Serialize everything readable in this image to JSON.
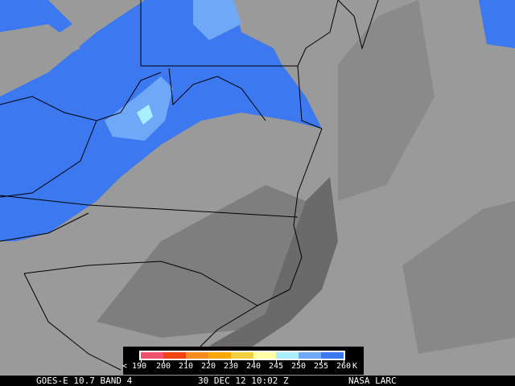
{
  "image": {
    "colors": {
      "background_gray": "#9a9a9a",
      "dark_gray": "#6e6e6e",
      "cloud_blue": "#3c78f0",
      "cloud_light_blue": "#70a8f8",
      "cloud_cyan": "#a8f0ff",
      "border": "#000000"
    }
  },
  "legend": {
    "unit": "K",
    "ticks": [
      "< 190",
      "200",
      "210",
      "220",
      "230",
      "240",
      "245",
      "250",
      "255",
      "260"
    ],
    "segments": [
      {
        "range": "190-200",
        "color": "#f0506a"
      },
      {
        "range": "200-210",
        "color": "#f04410"
      },
      {
        "range": "210-220",
        "color": "#f88a20"
      },
      {
        "range": "220-230",
        "color": "#f8a800"
      },
      {
        "range": "230-240",
        "color": "#f0d040"
      },
      {
        "range": "240-245",
        "color": "#ffffa8"
      },
      {
        "range": "245-250",
        "color": "#a8f0ff"
      },
      {
        "range": "250-255",
        "color": "#70a8f8"
      },
      {
        "range": "255-260",
        "color": "#3c78f0"
      }
    ]
  },
  "footer": {
    "satellite": "GOES-E 10.7 BAND 4",
    "datetime": "30 DEC 12 10:02 Z",
    "credit": "NASA LARC"
  }
}
